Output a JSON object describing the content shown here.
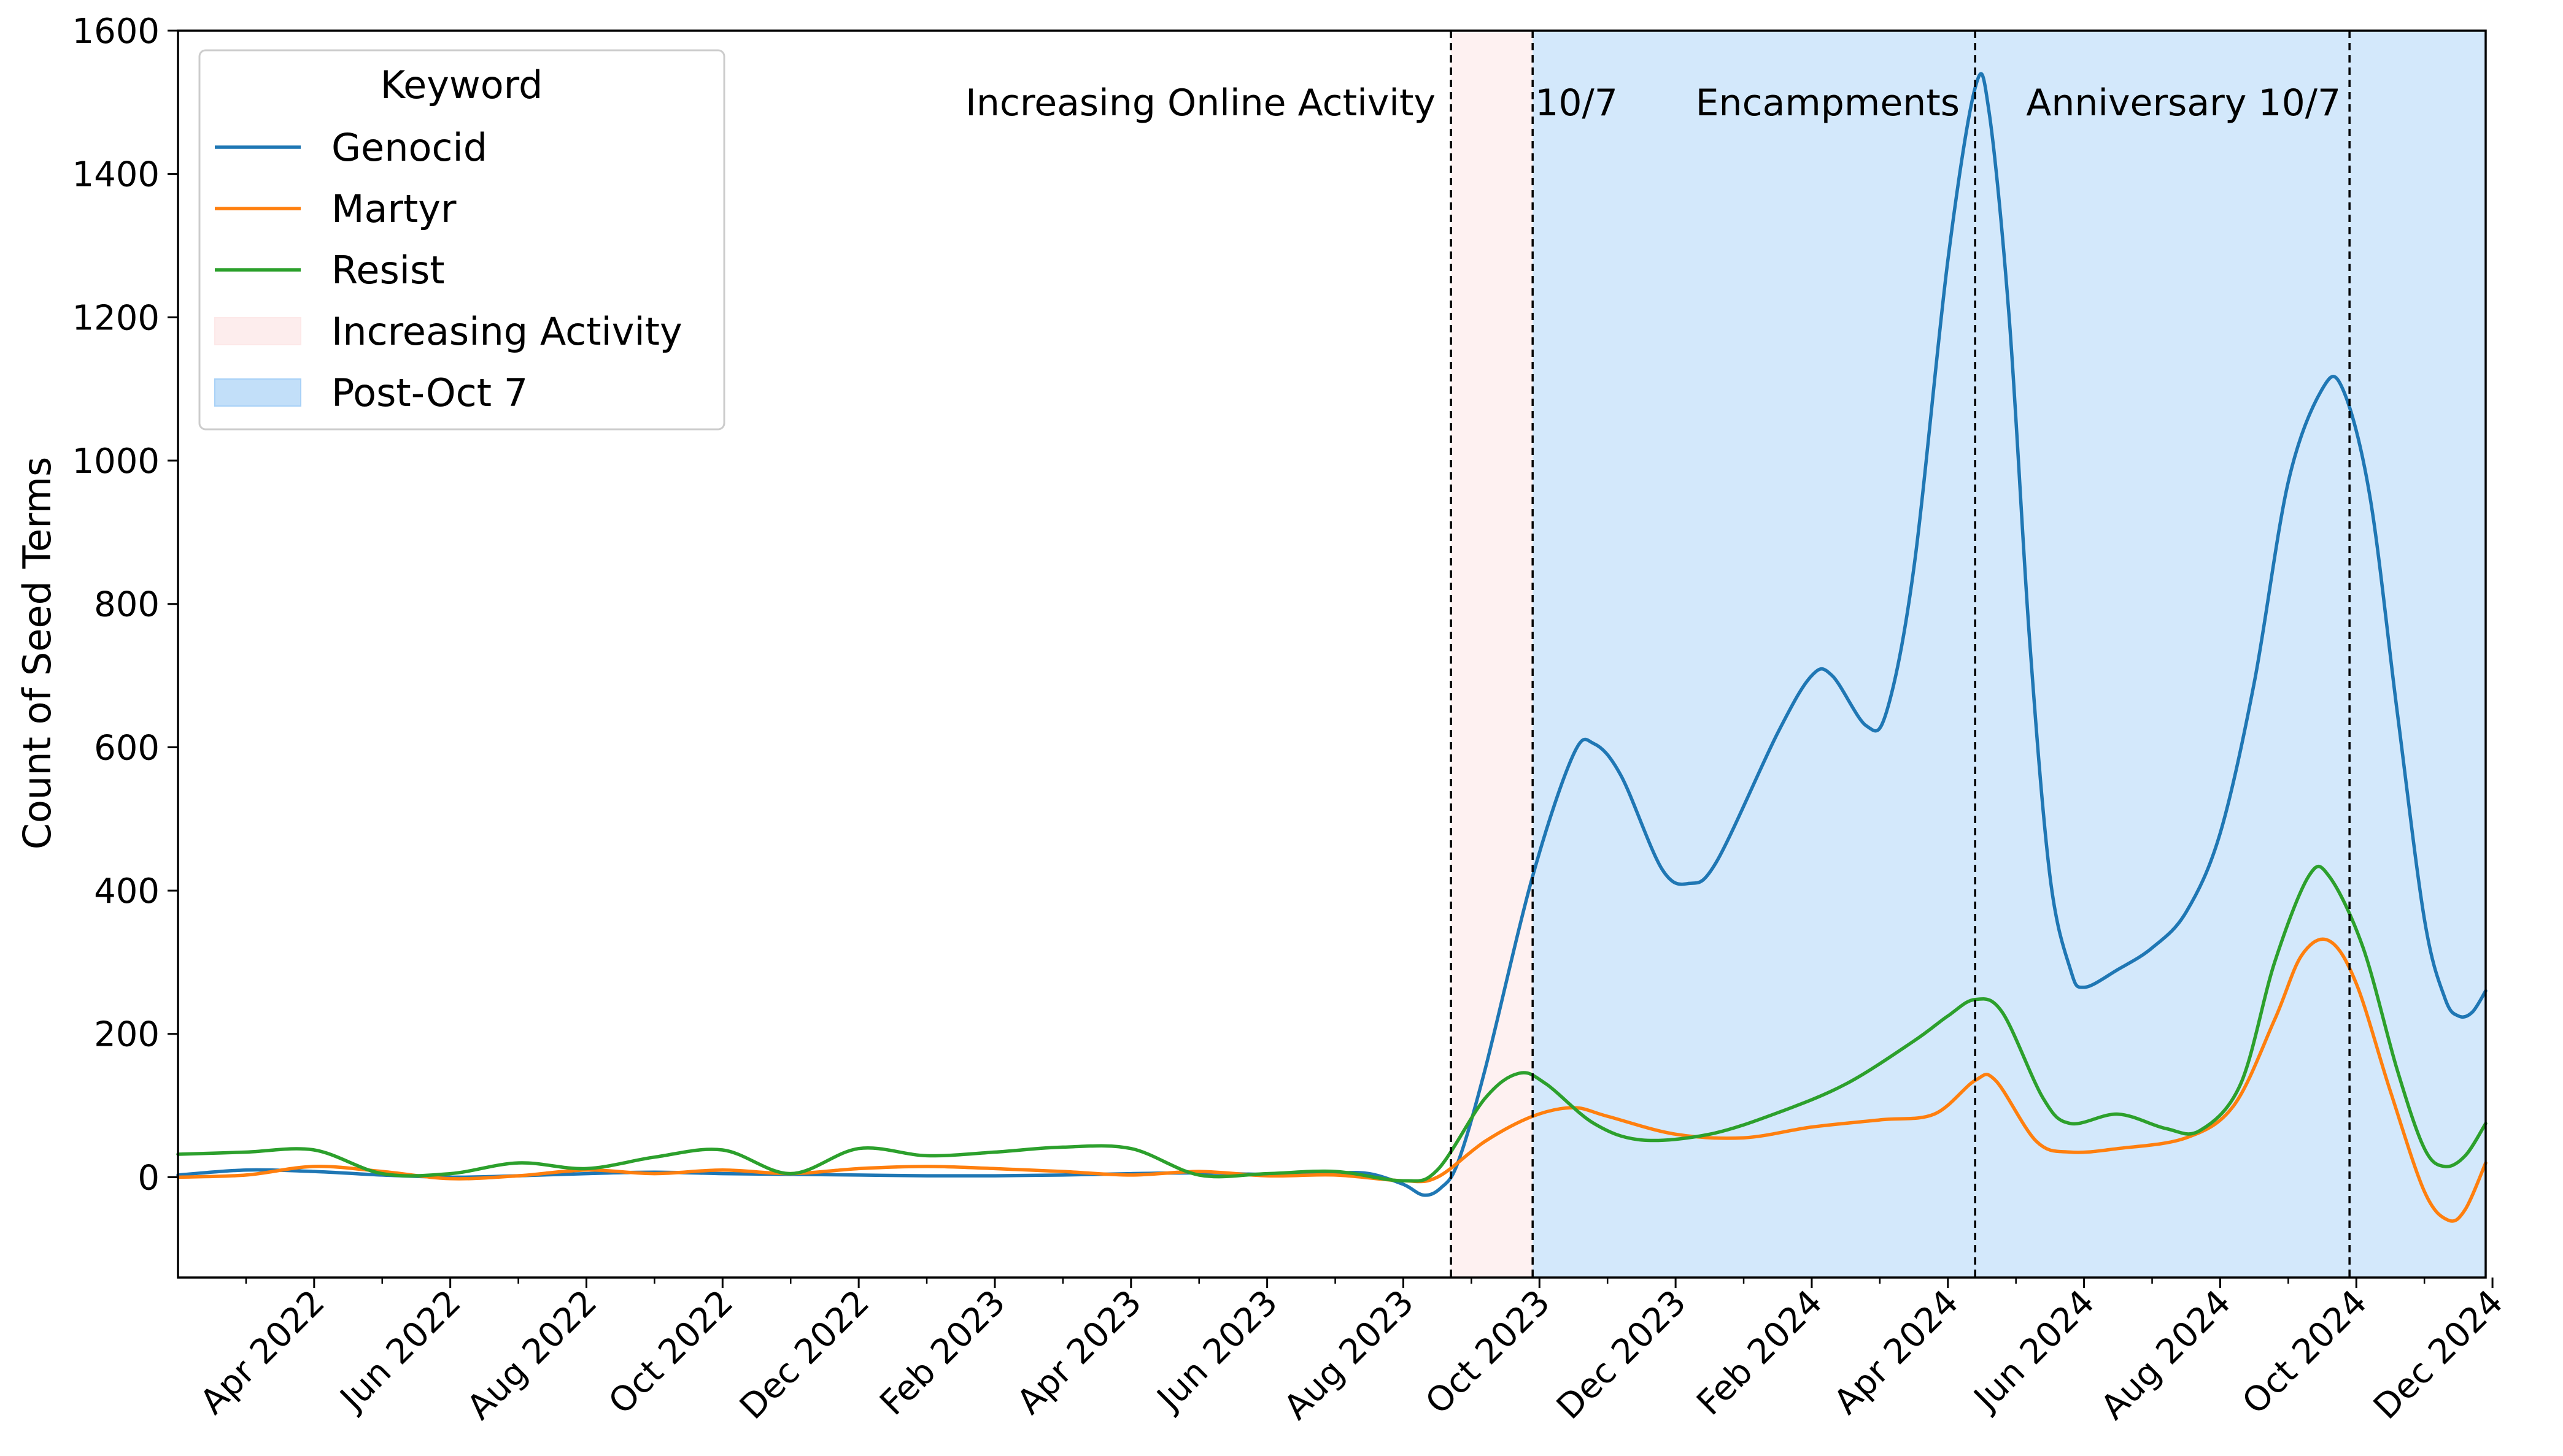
{
  "chart_data": {
    "type": "line",
    "title": "",
    "xlabel": "",
    "ylabel": "Count of Seed Terms",
    "xlim": [
      0.0,
      33.9
    ],
    "ylim": [
      -140,
      1600
    ],
    "yticks": [
      0,
      200,
      400,
      600,
      800,
      1000,
      1200,
      1400,
      1600
    ],
    "xticks": [
      {
        "m": 2,
        "label": "Apr 2022"
      },
      {
        "m": 4,
        "label": "Jun 2022"
      },
      {
        "m": 6,
        "label": "Aug 2022"
      },
      {
        "m": 8,
        "label": "Oct 2022"
      },
      {
        "m": 10,
        "label": "Dec 2022"
      },
      {
        "m": 12,
        "label": "Feb 2023"
      },
      {
        "m": 14,
        "label": "Apr 2023"
      },
      {
        "m": 16,
        "label": "Jun 2023"
      },
      {
        "m": 18,
        "label": "Aug 2023"
      },
      {
        "m": 20,
        "label": "Oct 2023"
      },
      {
        "m": 22,
        "label": "Dec 2023"
      },
      {
        "m": 24,
        "label": "Feb 2024"
      },
      {
        "m": 26,
        "label": "Apr 2024"
      },
      {
        "m": 28,
        "label": "Jun 2024"
      },
      {
        "m": 30,
        "label": "Aug 2024"
      },
      {
        "m": 32,
        "label": "Oct 2024"
      },
      {
        "m": 34,
        "label": "Dec 2024"
      }
    ],
    "minor_xticks": [
      1,
      3,
      5,
      7,
      9,
      11,
      13,
      15,
      17,
      19,
      21,
      23,
      25,
      27,
      29,
      31,
      33
    ],
    "regions": [
      {
        "name": "Increasing Activity",
        "from": 18.7,
        "to": 19.9,
        "color": "#fde8e8",
        "opacity": 0.6
      },
      {
        "name": "Post-Oct 7",
        "from": 19.9,
        "to": 33.9,
        "color": "#a8d1f7",
        "opacity": 0.5
      }
    ],
    "vlines": [
      18.7,
      19.9,
      26.4,
      31.9
    ],
    "annotations": [
      {
        "text": "Increasing Online Activity",
        "x": 18.6,
        "anchor": "end"
      },
      {
        "text": "10/7",
        "x": 19.9,
        "anchor": "start"
      },
      {
        "text": "Encampments",
        "x": 26.3,
        "anchor": "end"
      },
      {
        "text": "Anniversary 10/7",
        "x": 31.9,
        "anchor": "end"
      }
    ],
    "legend": {
      "title": "Keyword",
      "position": "top-left",
      "entries": [
        "Genocid",
        "Martyr",
        "Resist",
        "Increasing Activity",
        "Post-Oct 7"
      ]
    },
    "series": [
      {
        "name": "Genocid",
        "color": "#1f77b4",
        "points": [
          [
            0,
            3
          ],
          [
            1,
            10
          ],
          [
            2,
            8
          ],
          [
            3,
            3
          ],
          [
            4,
            0
          ],
          [
            5,
            2
          ],
          [
            6,
            5
          ],
          [
            7,
            7
          ],
          [
            8,
            5
          ],
          [
            9,
            4
          ],
          [
            10,
            3
          ],
          [
            11,
            2
          ],
          [
            12,
            2
          ],
          [
            13,
            3
          ],
          [
            14,
            5
          ],
          [
            15,
            6
          ],
          [
            16,
            4
          ],
          [
            17,
            6
          ],
          [
            17.5,
            5
          ],
          [
            18,
            -10
          ],
          [
            18.3,
            -25
          ],
          [
            18.55,
            -15
          ],
          [
            18.8,
            20
          ],
          [
            19.2,
            150
          ],
          [
            19.9,
            420
          ],
          [
            20.5,
            590
          ],
          [
            20.8,
            605
          ],
          [
            21.2,
            560
          ],
          [
            21.8,
            430
          ],
          [
            22.2,
            410
          ],
          [
            22.6,
            440
          ],
          [
            23.5,
            620
          ],
          [
            24,
            700
          ],
          [
            24.3,
            700
          ],
          [
            24.8,
            630
          ],
          [
            25.1,
            650
          ],
          [
            25.5,
            850
          ],
          [
            26,
            1280
          ],
          [
            26.4,
            1520
          ],
          [
            26.6,
            1490
          ],
          [
            26.9,
            1200
          ],
          [
            27.2,
            750
          ],
          [
            27.5,
            420
          ],
          [
            27.8,
            290
          ],
          [
            28,
            265
          ],
          [
            28.5,
            290
          ],
          [
            29,
            320
          ],
          [
            29.5,
            370
          ],
          [
            30,
            480
          ],
          [
            30.5,
            690
          ],
          [
            31,
            970
          ],
          [
            31.5,
            1100
          ],
          [
            31.8,
            1100
          ],
          [
            32.2,
            950
          ],
          [
            32.6,
            650
          ],
          [
            33,
            360
          ],
          [
            33.3,
            250
          ],
          [
            33.5,
            225
          ],
          [
            33.7,
            230
          ],
          [
            33.9,
            260
          ]
        ]
      },
      {
        "name": "Martyr",
        "color": "#ff7f0e",
        "points": [
          [
            0,
            0
          ],
          [
            1,
            3
          ],
          [
            2,
            15
          ],
          [
            3,
            8
          ],
          [
            4,
            -2
          ],
          [
            5,
            2
          ],
          [
            6,
            10
          ],
          [
            7,
            5
          ],
          [
            8,
            10
          ],
          [
            9,
            5
          ],
          [
            10,
            12
          ],
          [
            11,
            15
          ],
          [
            12,
            12
          ],
          [
            13,
            8
          ],
          [
            14,
            3
          ],
          [
            15,
            8
          ],
          [
            16,
            2
          ],
          [
            17,
            3
          ],
          [
            18,
            -5
          ],
          [
            18.5,
            0
          ],
          [
            19.2,
            50
          ],
          [
            19.9,
            85
          ],
          [
            20.5,
            97
          ],
          [
            21,
            85
          ],
          [
            22,
            60
          ],
          [
            23,
            55
          ],
          [
            24,
            70
          ],
          [
            25,
            80
          ],
          [
            25.8,
            88
          ],
          [
            26.4,
            135
          ],
          [
            26.7,
            135
          ],
          [
            27.3,
            50
          ],
          [
            27.8,
            35
          ],
          [
            28.5,
            40
          ],
          [
            29.5,
            55
          ],
          [
            30.2,
            100
          ],
          [
            30.8,
            220
          ],
          [
            31.2,
            310
          ],
          [
            31.6,
            330
          ],
          [
            32,
            270
          ],
          [
            32.5,
            120
          ],
          [
            33,
            -20
          ],
          [
            33.35,
            -60
          ],
          [
            33.6,
            -45
          ],
          [
            33.9,
            20
          ]
        ]
      },
      {
        "name": "Resist",
        "color": "#2ca02c",
        "points": [
          [
            0,
            32
          ],
          [
            1,
            35
          ],
          [
            2,
            38
          ],
          [
            3,
            5
          ],
          [
            4,
            5
          ],
          [
            5,
            20
          ],
          [
            6,
            12
          ],
          [
            7,
            28
          ],
          [
            8,
            38
          ],
          [
            9,
            5
          ],
          [
            10,
            40
          ],
          [
            11,
            30
          ],
          [
            12,
            35
          ],
          [
            13,
            42
          ],
          [
            14,
            40
          ],
          [
            15,
            3
          ],
          [
            16,
            5
          ],
          [
            17,
            8
          ],
          [
            18,
            -5
          ],
          [
            18.5,
            10
          ],
          [
            19.2,
            110
          ],
          [
            19.7,
            145
          ],
          [
            20.1,
            130
          ],
          [
            20.8,
            75
          ],
          [
            21.5,
            52
          ],
          [
            22.5,
            60
          ],
          [
            23.5,
            90
          ],
          [
            24.5,
            130
          ],
          [
            25.5,
            190
          ],
          [
            26,
            225
          ],
          [
            26.4,
            248
          ],
          [
            26.8,
            230
          ],
          [
            27.4,
            110
          ],
          [
            27.8,
            75
          ],
          [
            28.5,
            88
          ],
          [
            29.2,
            68
          ],
          [
            29.7,
            65
          ],
          [
            30.3,
            130
          ],
          [
            30.8,
            300
          ],
          [
            31.3,
            420
          ],
          [
            31.6,
            420
          ],
          [
            32.1,
            320
          ],
          [
            32.6,
            150
          ],
          [
            33,
            40
          ],
          [
            33.3,
            15
          ],
          [
            33.6,
            30
          ],
          [
            33.9,
            75
          ]
        ]
      }
    ]
  }
}
